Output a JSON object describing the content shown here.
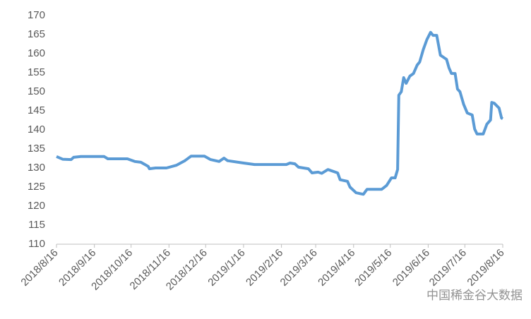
{
  "chart_data": {
    "type": "line",
    "x": [
      "2018/8/16",
      "2018/8/21",
      "2018/8/28",
      "2018/8/30",
      "2018/9/5",
      "2018/9/24",
      "2018/9/27",
      "2018/10/13",
      "2018/10/19",
      "2018/10/24",
      "2018/10/30",
      "2018/10/31",
      "2018/11/5",
      "2018/11/14",
      "2018/11/22",
      "2018/11/29",
      "2018/12/4",
      "2018/12/15",
      "2018/12/20",
      "2018/12/27",
      "2018/12/31",
      "2019/1/3",
      "2019/1/16",
      "2019/1/25",
      "2019/2/20",
      "2019/2/23",
      "2019/2/27",
      "2019/3/2",
      "2019/3/10",
      "2019/3/13",
      "2019/3/18",
      "2019/3/21",
      "2019/3/26",
      "2019/4/3",
      "2019/4/5",
      "2019/4/11",
      "2019/4/13",
      "2019/4/18",
      "2019/4/24",
      "2019/4/27",
      "2019/5/9",
      "2019/5/13",
      "2019/5/17",
      "2019/5/20",
      "2019/5/22",
      "2019/5/23",
      "2019/5/25",
      "2019/5/27",
      "2019/5/29",
      "2019/6/1",
      "2019/6/4",
      "2019/6/7",
      "2019/6/9",
      "2019/6/12",
      "2019/6/15",
      "2019/6/18",
      "2019/6/20",
      "2019/6/23",
      "2019/6/26",
      "2019/7/1",
      "2019/7/3",
      "2019/7/5",
      "2019/7/8",
      "2019/7/10",
      "2019/7/12",
      "2019/7/15",
      "2019/7/18",
      "2019/7/22",
      "2019/7/24",
      "2019/7/26",
      "2019/7/31",
      "2019/8/3",
      "2019/8/6",
      "2019/8/7",
      "2019/8/9",
      "2019/8/13",
      "2019/8/15",
      "2019/8/16"
    ],
    "series": [
      {
        "color": "#5b9bd5",
        "values": [
          133.0,
          132.3,
          132.2,
          132.8,
          133.0,
          133.0,
          132.4,
          132.4,
          131.7,
          131.5,
          130.4,
          129.8,
          130.0,
          130.0,
          130.7,
          131.9,
          133.1,
          133.1,
          132.2,
          131.7,
          132.6,
          131.9,
          131.3,
          130.9,
          130.9,
          131.3,
          131.1,
          130.2,
          129.8,
          128.7,
          128.9,
          128.6,
          129.6,
          128.7,
          126.9,
          126.5,
          125.0,
          123.5,
          123.1,
          124.4,
          124.4,
          125.4,
          127.4,
          127.4,
          129.6,
          149.1,
          150.0,
          153.7,
          152.2,
          154.1,
          154.8,
          157.0,
          157.8,
          161.1,
          163.7,
          165.6,
          164.8,
          164.8,
          159.6,
          158.5,
          156.3,
          154.8,
          154.8,
          150.7,
          150.0,
          146.7,
          144.4,
          143.9,
          140.2,
          138.9,
          138.9,
          141.5,
          142.6,
          147.2,
          147.0,
          145.7,
          143.1,
          142.9
        ]
      }
    ],
    "xlim": [
      "2018/8/16",
      "2019/8/16"
    ],
    "xticks": [
      "2018/8/16",
      "2018/9/16",
      "2018/10/16",
      "2018/11/16",
      "2018/12/16",
      "2019/1/16",
      "2019/2/16",
      "2019/3/16",
      "2019/4/16",
      "2019/5/16",
      "2019/6/16",
      "2019/7/16",
      "2019/8/16"
    ],
    "ylim": [
      110,
      170
    ],
    "yticks": [
      110,
      115,
      120,
      125,
      130,
      135,
      140,
      145,
      150,
      155,
      160,
      165,
      170
    ],
    "watermark": "中国稀金谷大数据"
  }
}
